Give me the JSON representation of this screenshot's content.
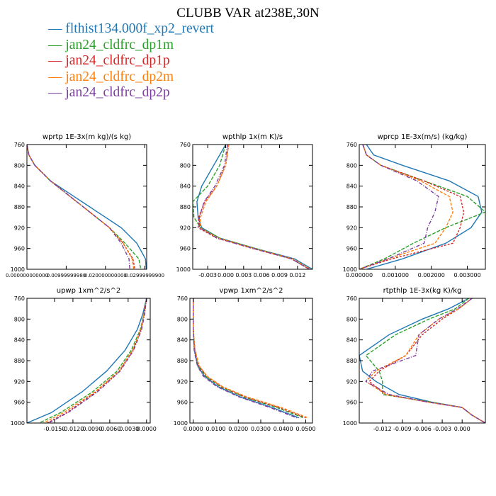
{
  "title": "CLUBB VAR at238E,30N",
  "legend": [
    {
      "label": "flthist134.000f_xp2_revert",
      "color": "#1f77b4"
    },
    {
      "label": "jan24_cldfrc_dp1m",
      "color": "#2ca02c"
    },
    {
      "label": "jan24_cldfrc_dp1p",
      "color": "#d62728"
    },
    {
      "label": "jan24_cldfrc_dp2m",
      "color": "#ff7f0e"
    },
    {
      "label": "jan24_cldfrc_dp2p",
      "color": "#7b3fa0"
    }
  ],
  "chart_data": [
    {
      "type": "line",
      "title": "wprtp  1E-3x(m kg)/(s kg)",
      "xlim": [
        0.0,
        0.0305
      ],
      "ylim": [
        760,
        1000
      ],
      "y_reversed": true,
      "xtick_values": [
        0.0,
        0.01,
        0.02,
        0.03
      ],
      "xtick_labels": [
        "0.000000000000",
        "0.00999999980",
        "0.020000000000",
        "0.02999999900"
      ],
      "ytick_values": [
        760,
        800,
        840,
        880,
        920,
        960,
        1000
      ],
      "ytick_labels": [
        "760",
        "800",
        "840",
        "880",
        "920",
        "960",
        "1000"
      ],
      "series": [
        {
          "x": [
            0.0,
            0.0005,
            0.002,
            0.006,
            0.012,
            0.018,
            0.024,
            0.028,
            0.0302,
            0.0304
          ],
          "y": [
            760,
            780,
            800,
            830,
            860,
            890,
            920,
            950,
            980,
            1000
          ]
        },
        {
          "x": [
            0.0,
            0.0005,
            0.002,
            0.006,
            0.011,
            0.016,
            0.021,
            0.025,
            0.0285,
            0.029
          ],
          "y": [
            760,
            780,
            800,
            830,
            860,
            890,
            920,
            950,
            980,
            1000
          ]
        },
        {
          "x": [
            0.0,
            0.0005,
            0.002,
            0.006,
            0.011,
            0.016,
            0.021,
            0.0245,
            0.027,
            0.0275
          ],
          "y": [
            760,
            780,
            800,
            830,
            860,
            890,
            920,
            950,
            980,
            1000
          ]
        },
        {
          "x": [
            0.0,
            0.0005,
            0.002,
            0.006,
            0.011,
            0.016,
            0.021,
            0.0245,
            0.0268,
            0.0272
          ],
          "y": [
            760,
            780,
            800,
            830,
            860,
            890,
            920,
            950,
            980,
            1000
          ]
        },
        {
          "x": [
            0.0,
            0.0005,
            0.002,
            0.006,
            0.011,
            0.016,
            0.021,
            0.024,
            0.026,
            0.0262
          ],
          "y": [
            760,
            780,
            800,
            830,
            860,
            890,
            920,
            950,
            980,
            1000
          ]
        }
      ]
    },
    {
      "type": "line",
      "title": "wpthlp  1x(m K)/s",
      "xlim": [
        -0.0055,
        0.0145
      ],
      "ylim": [
        760,
        1000
      ],
      "y_reversed": true,
      "xtick_values": [
        -0.003,
        0.0,
        0.003,
        0.006,
        0.009,
        0.012
      ],
      "xtick_labels": [
        "-0.003",
        "0.000",
        "0.003",
        "0.006",
        "0.009",
        "0.012"
      ],
      "ytick_values": [
        760,
        800,
        840,
        880,
        920,
        960,
        1000
      ],
      "ytick_labels": [
        "760",
        "800",
        "840",
        "880",
        "920",
        "960",
        "1000"
      ],
      "series": [
        {
          "x": [
            0.0,
            -0.002,
            -0.004,
            -0.0048,
            -0.0046,
            -0.004,
            -0.001,
            0.005,
            0.0115,
            0.0145
          ],
          "y": [
            760,
            800,
            840,
            870,
            900,
            920,
            940,
            960,
            980,
            1000
          ]
        },
        {
          "x": [
            0.0,
            -0.001,
            -0.003,
            -0.0055,
            -0.0053,
            -0.0042,
            -0.001,
            0.005,
            0.011,
            0.014
          ],
          "y": [
            760,
            800,
            840,
            870,
            900,
            920,
            940,
            960,
            980,
            1000
          ]
        },
        {
          "x": [
            0.0005,
            0.0,
            -0.0015,
            -0.0035,
            -0.0045,
            -0.0046,
            -0.0015,
            0.0045,
            0.011,
            0.014
          ],
          "y": [
            760,
            800,
            840,
            870,
            900,
            920,
            940,
            960,
            980,
            1000
          ]
        },
        {
          "x": [
            0.0005,
            0.0,
            -0.0015,
            -0.0033,
            -0.0042,
            -0.0043,
            -0.0012,
            0.0048,
            0.0112,
            0.0142
          ],
          "y": [
            760,
            800,
            840,
            870,
            900,
            920,
            940,
            960,
            980,
            1000
          ]
        },
        {
          "x": [
            0.0003,
            -0.0002,
            -0.0018,
            -0.0036,
            -0.0044,
            -0.0044,
            -0.0014,
            0.0046,
            0.011,
            0.014
          ],
          "y": [
            760,
            800,
            840,
            870,
            900,
            920,
            940,
            960,
            980,
            1000
          ]
        }
      ]
    },
    {
      "type": "line",
      "title": "wprcp  1E-3x(m/s) (kg/kg)",
      "xlim": [
        0.0,
        0.0035
      ],
      "ylim": [
        760,
        1000
      ],
      "y_reversed": true,
      "xtick_values": [
        0.0,
        0.001,
        0.002,
        0.003
      ],
      "xtick_labels": [
        "0.000000",
        "0.001000",
        "0.002000",
        "0.003000"
      ],
      "ytick_values": [
        760,
        800,
        840,
        880,
        920,
        960,
        1000
      ],
      "ytick_labels": [
        "760",
        "800",
        "840",
        "880",
        "920",
        "960",
        "1000"
      ],
      "series": [
        {
          "x": [
            0.0002,
            0.0004,
            0.0012,
            0.0025,
            0.0033,
            0.0034,
            0.0031,
            0.0024,
            0.0012,
            0.0002
          ],
          "y": [
            760,
            780,
            800,
            830,
            860,
            890,
            920,
            950,
            980,
            1000
          ]
        },
        {
          "x": [
            0.0001,
            0.0002,
            0.0006,
            0.0018,
            0.003,
            0.0035,
            0.0024,
            0.0015,
            0.0007,
            0.0
          ],
          "y": [
            760,
            780,
            800,
            830,
            860,
            890,
            920,
            950,
            980,
            1000
          ]
        },
        {
          "x": [
            0.0001,
            0.0002,
            0.0006,
            0.0018,
            0.0028,
            0.0029,
            0.0028,
            0.0026,
            0.0009,
            0.0
          ],
          "y": [
            760,
            780,
            800,
            830,
            860,
            890,
            920,
            950,
            980,
            1000
          ]
        },
        {
          "x": [
            0.0001,
            0.0002,
            0.0006,
            0.0017,
            0.0025,
            0.0026,
            0.0024,
            0.0021,
            0.0008,
            0.0
          ],
          "y": [
            760,
            780,
            800,
            830,
            860,
            890,
            920,
            950,
            980,
            1000
          ]
        },
        {
          "x": [
            0.0001,
            0.0002,
            0.0006,
            0.0016,
            0.0022,
            0.0021,
            0.0019,
            0.0018,
            0.0008,
            0.0
          ],
          "y": [
            760,
            780,
            800,
            830,
            860,
            890,
            920,
            950,
            980,
            1000
          ]
        }
      ]
    },
    {
      "type": "line",
      "title": "upwp   1xm^2/s^2",
      "xlim": [
        -0.0195,
        0.0006
      ],
      "ylim": [
        760,
        1000
      ],
      "y_reversed": true,
      "xtick_values": [
        -0.015,
        -0.012,
        -0.009,
        -0.006,
        -0.003,
        0.0
      ],
      "xtick_labels": [
        "-0.0150",
        "-0.0120",
        "-0.0090",
        "-0.0060",
        "-0.0030",
        "0.0000"
      ],
      "ytick_values": [
        760,
        800,
        840,
        880,
        920,
        960,
        1000
      ],
      "ytick_labels": [
        "760",
        "800",
        "840",
        "880",
        "920",
        "960",
        "1000"
      ],
      "series": [
        {
          "x": [
            0.0,
            -0.0006,
            -0.0015,
            -0.0035,
            -0.0065,
            -0.0105,
            -0.0155,
            -0.0195
          ],
          "y": [
            760,
            790,
            820,
            860,
            900,
            940,
            980,
            1000
          ]
        },
        {
          "x": [
            0.0,
            -0.0004,
            -0.001,
            -0.0025,
            -0.0048,
            -0.0088,
            -0.014,
            -0.0175
          ],
          "y": [
            760,
            790,
            820,
            860,
            900,
            940,
            980,
            1000
          ]
        },
        {
          "x": [
            0.0,
            -0.0004,
            -0.0009,
            -0.0022,
            -0.0044,
            -0.0082,
            -0.013,
            -0.0162
          ],
          "y": [
            760,
            790,
            820,
            860,
            900,
            940,
            980,
            1000
          ]
        },
        {
          "x": [
            0.0,
            -0.0004,
            -0.0009,
            -0.0023,
            -0.0045,
            -0.0084,
            -0.0135,
            -0.0168
          ],
          "y": [
            760,
            790,
            820,
            860,
            900,
            940,
            980,
            1000
          ]
        },
        {
          "x": [
            0.0,
            -0.0003,
            -0.0008,
            -0.0021,
            -0.0043,
            -0.008,
            -0.0128,
            -0.016
          ],
          "y": [
            760,
            790,
            820,
            860,
            900,
            940,
            980,
            1000
          ]
        }
      ]
    },
    {
      "type": "line",
      "title": "vpwp   1xm^2/s^2",
      "xlim": [
        -0.0015,
        0.053
      ],
      "ylim": [
        760,
        1000
      ],
      "y_reversed": true,
      "xtick_values": [
        0.0,
        0.01,
        0.02,
        0.03,
        0.04,
        0.05
      ],
      "xtick_labels": [
        "0.0000",
        "0.0100",
        "0.0200",
        "0.0300",
        "0.0400",
        "0.0500"
      ],
      "ytick_values": [
        760,
        800,
        840,
        880,
        920,
        960,
        1000
      ],
      "ytick_labels": [
        "760",
        "800",
        "840",
        "880",
        "920",
        "960",
        "1000"
      ],
      "series": [
        {
          "x": [
            0.0,
            0.0,
            0.0005,
            0.002,
            0.005,
            0.011,
            0.021,
            0.035,
            0.047
          ],
          "y": [
            760,
            820,
            860,
            890,
            910,
            930,
            950,
            970,
            990
          ]
        },
        {
          "x": [
            0.0,
            0.0,
            0.0006,
            0.0022,
            0.0055,
            0.012,
            0.0225,
            0.037,
            0.049
          ],
          "y": [
            760,
            820,
            860,
            890,
            910,
            930,
            950,
            970,
            990
          ]
        },
        {
          "x": [
            0.0,
            0.0,
            0.0007,
            0.0025,
            0.006,
            0.0125,
            0.023,
            0.038,
            0.05
          ],
          "y": [
            760,
            820,
            860,
            890,
            910,
            930,
            950,
            970,
            990
          ]
        },
        {
          "x": [
            0.0,
            0.0,
            0.0008,
            0.0026,
            0.0062,
            0.013,
            0.024,
            0.039,
            0.051
          ],
          "y": [
            760,
            820,
            860,
            890,
            910,
            930,
            950,
            970,
            990
          ]
        },
        {
          "x": [
            0.0,
            0.0,
            0.0004,
            0.0018,
            0.0045,
            0.0105,
            0.0205,
            0.034,
            0.046
          ],
          "y": [
            760,
            820,
            860,
            890,
            910,
            930,
            950,
            970,
            990
          ]
        }
      ]
    },
    {
      "type": "line",
      "title": "rtpthlp  1E-3x(kg K)/kg",
      "xlim": [
        -0.0155,
        0.0035
      ],
      "ylim": [
        760,
        1000
      ],
      "y_reversed": true,
      "xtick_values": [
        -0.012,
        -0.009,
        -0.006,
        -0.003,
        0.0
      ],
      "xtick_labels": [
        "-0.012",
        "-0.009",
        "-0.006",
        "-0.003",
        "0.000"
      ],
      "ytick_values": [
        760,
        800,
        840,
        880,
        920,
        960,
        1000
      ],
      "ytick_labels": [
        "760",
        "800",
        "840",
        "880",
        "920",
        "960",
        "1000"
      ],
      "series": [
        {
          "x": [
            0.001,
            -0.002,
            -0.006,
            -0.011,
            -0.0155,
            -0.015,
            -0.013,
            -0.0095,
            -0.0045,
            0.0,
            0.0015,
            0.0035
          ],
          "y": [
            760,
            780,
            800,
            830,
            870,
            900,
            920,
            945,
            960,
            970,
            985,
            1000
          ]
        },
        {
          "x": [
            0.001,
            -0.001,
            -0.005,
            -0.01,
            -0.0145,
            -0.0125,
            -0.012,
            -0.012,
            -0.0045,
            0.0,
            0.0015,
            0.0035
          ],
          "y": [
            760,
            780,
            800,
            830,
            870,
            900,
            920,
            945,
            960,
            970,
            985,
            1000
          ]
        },
        {
          "x": [
            0.0015,
            -0.0005,
            -0.003,
            -0.006,
            -0.0085,
            -0.0125,
            -0.014,
            -0.0115,
            -0.005,
            0.0,
            0.0015,
            0.0035
          ],
          "y": [
            760,
            780,
            800,
            830,
            870,
            900,
            920,
            945,
            960,
            970,
            985,
            1000
          ]
        },
        {
          "x": [
            0.0015,
            -0.0005,
            -0.0035,
            -0.0065,
            -0.0085,
            -0.013,
            -0.0145,
            -0.0115,
            -0.005,
            0.0,
            0.0015,
            0.0035
          ],
          "y": [
            760,
            780,
            800,
            830,
            870,
            900,
            920,
            945,
            960,
            970,
            985,
            1000
          ]
        },
        {
          "x": [
            0.0015,
            -0.0007,
            -0.0035,
            -0.0065,
            -0.007,
            -0.0135,
            -0.0145,
            -0.011,
            -0.005,
            0.0,
            0.0015,
            0.0035
          ],
          "y": [
            760,
            780,
            800,
            830,
            870,
            900,
            920,
            945,
            960,
            970,
            985,
            1000
          ]
        }
      ]
    }
  ]
}
